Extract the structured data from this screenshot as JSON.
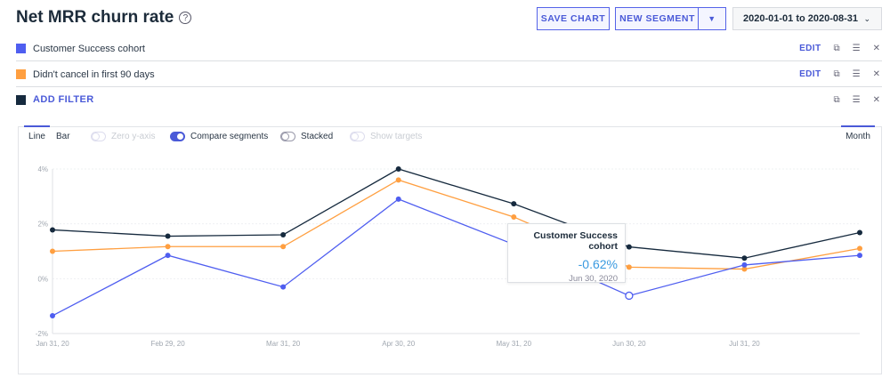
{
  "header": {
    "title": "Net MRR churn rate",
    "help_icon": "?",
    "save_chart": "SAVE CHART",
    "new_segment": "NEW SEGMENT",
    "date_range": "2020-01-01 to 2020-08-31"
  },
  "segments": [
    {
      "label": "Customer Success cohort",
      "color": "#4f5ef0",
      "edit": "EDIT"
    },
    {
      "label": "Didn't cancel in first 90 days",
      "color": "#ff9f40",
      "edit": "EDIT"
    },
    {
      "label": "ADD FILTER",
      "color": "#162a3e"
    }
  ],
  "toolbar": {
    "line": "Line",
    "bar": "Bar",
    "zero_y_axis": "Zero y-axis",
    "compare_segments": "Compare segments",
    "stacked": "Stacked",
    "show_targets": "Show targets",
    "period": "Month",
    "compare_on": true,
    "stacked_on": false
  },
  "tooltip": {
    "series": "Customer Success cohort",
    "value": "-0.62%",
    "date": "Jun 30, 2020"
  },
  "chart_data": {
    "type": "line",
    "categories": [
      "Jan 31, 20",
      "Feb 29, 20",
      "Mar 31, 20",
      "Apr 30, 20",
      "May 31, 20",
      "Jun 30, 20",
      "Jul 31, 20",
      ""
    ],
    "yticks": [
      "4%",
      "2%",
      "0%",
      "-2%"
    ],
    "ylim": [
      -2,
      4
    ],
    "grid": true,
    "series": [
      {
        "name": "Customer Success cohort",
        "color": "#4f5ef0",
        "values": [
          -1.35,
          0.85,
          -0.3,
          2.9,
          1.25,
          -0.62,
          0.5,
          0.85
        ]
      },
      {
        "name": "Didn't cancel in first 90 days",
        "color": "#ff9f40",
        "values": [
          1.0,
          1.17,
          1.17,
          3.6,
          2.25,
          0.42,
          0.35,
          1.1
        ]
      },
      {
        "color": "#162a3e",
        "values": [
          1.78,
          1.55,
          1.6,
          4.0,
          2.73,
          1.16,
          0.75,
          1.68
        ]
      }
    ]
  }
}
